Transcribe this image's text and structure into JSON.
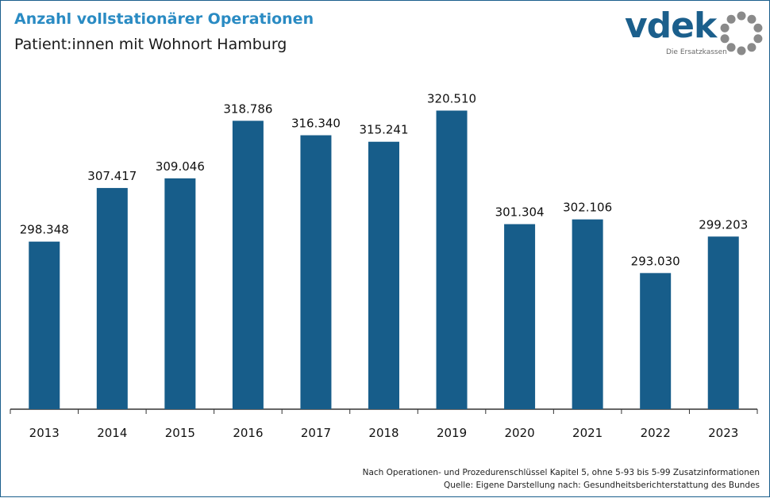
{
  "header": {
    "title": "Anzahl vollstationärer Operationen",
    "subtitle": "Patient:innen mit Wohnort Hamburg"
  },
  "logo": {
    "wordmark": "vdek",
    "tagline": "Die Ersatzkassen"
  },
  "footer": {
    "note": "Nach Operationen- und Prozedurenschlüssel Kapitel 5, ohne 5-93 bis 5-99 Zusatzinformationen",
    "source": "Quelle: Eigene Darstellung nach: Gesundheitsberichterstattung des Bundes"
  },
  "colors": {
    "bar": "#175d8a",
    "title": "#2a8bc3",
    "axis": "#333333"
  },
  "chart_data": {
    "type": "bar",
    "title": "Anzahl vollstationärer Operationen",
    "subtitle": "Patient:innen mit Wohnort Hamburg",
    "xlabel": "",
    "ylabel": "",
    "categories": [
      "2013",
      "2014",
      "2015",
      "2016",
      "2017",
      "2018",
      "2019",
      "2020",
      "2021",
      "2022",
      "2023"
    ],
    "values": [
      298348,
      307417,
      309046,
      318786,
      316340,
      315241,
      320510,
      301304,
      302106,
      293030,
      299203
    ],
    "value_labels": [
      "298.348",
      "307.417",
      "309.046",
      "318.786",
      "316.340",
      "315.241",
      "320.510",
      "301.304",
      "302.106",
      "293.030",
      "299.203"
    ],
    "ylim": [
      270000,
      325000
    ],
    "grid": false,
    "legend": "none"
  }
}
